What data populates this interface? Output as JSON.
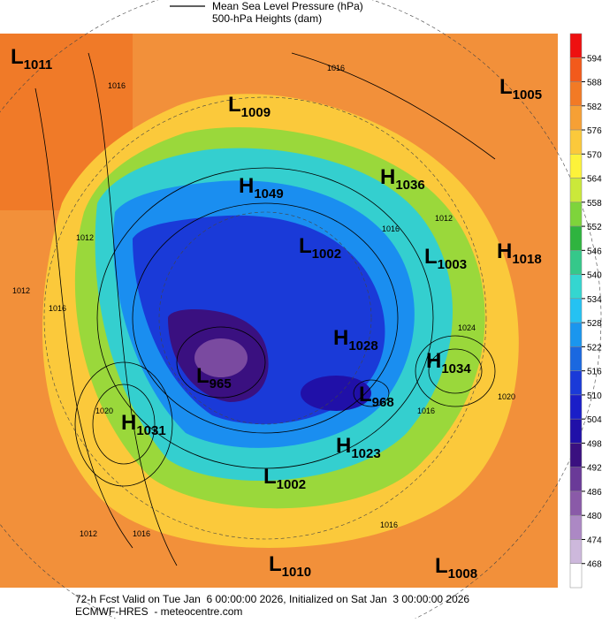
{
  "legend": {
    "line_label": "Mean Sea Level Pressure (hPa)",
    "height_label": "500-hPa Heights (dam)"
  },
  "pressure_centers": [
    {
      "type": "L",
      "value": 1011
    },
    {
      "type": "L",
      "value": 1009
    },
    {
      "type": "L",
      "value": 1005
    },
    {
      "type": "H",
      "value": 1049
    },
    {
      "type": "H",
      "value": 1036
    },
    {
      "type": "L",
      "value": 1002
    },
    {
      "type": "L",
      "value": 1003
    },
    {
      "type": "H",
      "value": 1018
    },
    {
      "type": "H",
      "value": 1028
    },
    {
      "type": "H",
      "value": 1034
    },
    {
      "type": "L",
      "value": 965
    },
    {
      "type": "L",
      "value": 968
    },
    {
      "type": "H",
      "value": 1031
    },
    {
      "type": "H",
      "value": 1023
    },
    {
      "type": "L",
      "value": 1002
    },
    {
      "type": "L",
      "value": 1010
    },
    {
      "type": "L",
      "value": 1008
    }
  ],
  "contour_labels": [
    1016,
    1016,
    1012,
    1016,
    1012,
    1012,
    1016,
    1024,
    1020,
    1016,
    1020,
    1012,
    1016,
    1016
  ],
  "colorbar": {
    "levels": [
      594,
      588,
      582,
      576,
      570,
      564,
      558,
      552,
      546,
      540,
      534,
      528,
      522,
      516,
      510,
      504,
      498,
      492,
      486,
      480,
      474,
      468
    ],
    "colors": [
      "#ee1010",
      "#f25a1b",
      "#f27a25",
      "#f6a035",
      "#fbc93b",
      "#fdf23a",
      "#cbe83a",
      "#7ed43b",
      "#2fb43f",
      "#35c88a",
      "#34d6d0",
      "#25c2f2",
      "#1a96ee",
      "#1a68e0",
      "#1a3ad8",
      "#1a1ec8",
      "#2010a8",
      "#3a1080",
      "#6a3a98",
      "#8a5aa8",
      "#ac88c4",
      "#cdb8dc",
      "#ffffff"
    ]
  },
  "footer": {
    "line1": "72-h Fcst Valid on Tue Jan  6 00:00:00 2026, Initialized on Sat Jan  3 00:00:00 2026",
    "line2": "ECMWF-HRES  - meteocentre.com"
  }
}
